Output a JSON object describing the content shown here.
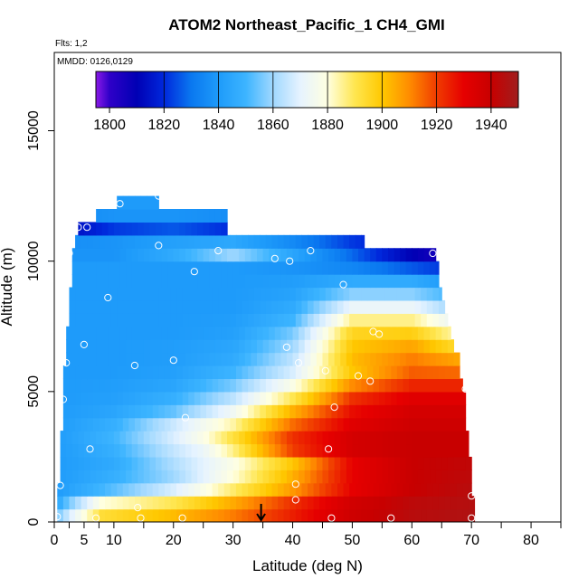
{
  "chart_data": {
    "type": "heatmap",
    "title": "ATOM2 Northeast_Pacific_1 CH4_GMI",
    "flights_label": "Flts: 1,2",
    "dates_label": "MMDD: 0126,0129",
    "xlabel": "Latitude (deg N)",
    "ylabel": "Altitude (m)",
    "xlim": [
      0,
      85
    ],
    "ylim": [
      0,
      18000
    ],
    "x_ticks": [
      0,
      5,
      10,
      20,
      30,
      40,
      50,
      60,
      70,
      80
    ],
    "x_tick_labels": [
      "0",
      "5",
      "10",
      "20",
      "30",
      "40",
      "50",
      "60",
      "70",
      "80"
    ],
    "x_minor_ticks": [
      2.5,
      7.5,
      15,
      25,
      35,
      45,
      55,
      65,
      75,
      85
    ],
    "y_ticks": [
      0,
      5000,
      10000,
      15000
    ],
    "y_tick_labels": [
      "0",
      "5000",
      "10000",
      "15000"
    ],
    "colorbar": {
      "min": 1795,
      "max": 1950,
      "ticks": [
        1800,
        1820,
        1840,
        1860,
        1880,
        1900,
        1920,
        1940
      ],
      "tick_labels": [
        "1800",
        "1820",
        "1840",
        "1860",
        "1880",
        "1900",
        "1920",
        "1940"
      ],
      "divisions": [
        1820,
        1840,
        1860,
        1880,
        1900,
        1920,
        1940
      ],
      "stops": [
        {
          "v": 1795,
          "c": "#8B1AE8"
        },
        {
          "v": 1800,
          "c": "#2F00C8"
        },
        {
          "v": 1810,
          "c": "#0000B4"
        },
        {
          "v": 1820,
          "c": "#0028DC"
        },
        {
          "v": 1830,
          "c": "#0A78F0"
        },
        {
          "v": 1840,
          "c": "#1E9BFA"
        },
        {
          "v": 1850,
          "c": "#3CB4FF"
        },
        {
          "v": 1860,
          "c": "#A0D8FF"
        },
        {
          "v": 1870,
          "c": "#E6F3FF"
        },
        {
          "v": 1880,
          "c": "#FFFFE0"
        },
        {
          "v": 1890,
          "c": "#FFE650"
        },
        {
          "v": 1900,
          "c": "#FFC800"
        },
        {
          "v": 1910,
          "c": "#FF8C00"
        },
        {
          "v": 1920,
          "c": "#F03C00"
        },
        {
          "v": 1930,
          "c": "#E60000"
        },
        {
          "v": 1940,
          "c": "#C80000"
        },
        {
          "v": 1950,
          "c": "#A01E1E"
        }
      ]
    },
    "layers": [
      {
        "alt": 250,
        "lat_min": 0.5,
        "lat_max": 70.5,
        "lat_knots": [
          0,
          3,
          8,
          20,
          30,
          40,
          50,
          60,
          70
        ],
        "values": [
          1852,
          1870,
          1893,
          1902,
          1912,
          1925,
          1938,
          1944,
          1946
        ]
      },
      {
        "alt": 750,
        "lat_min": 0.5,
        "lat_max": 70.5,
        "lat_knots": [
          0,
          3,
          8,
          20,
          30,
          40,
          50,
          60,
          70
        ],
        "values": [
          1842,
          1858,
          1880,
          1890,
          1905,
          1922,
          1937,
          1943,
          1945
        ]
      },
      {
        "alt": 1250,
        "lat_min": 0.5,
        "lat_max": 70,
        "lat_knots": [
          0,
          10,
          20,
          30,
          40,
          50,
          60,
          70
        ],
        "values": [
          1840,
          1853,
          1868,
          1888,
          1908,
          1930,
          1940,
          1944
        ]
      },
      {
        "alt": 1750,
        "lat_min": 1,
        "lat_max": 70,
        "lat_knots": [
          0,
          10,
          20,
          30,
          40,
          50,
          60,
          70
        ],
        "values": [
          1840,
          1848,
          1860,
          1880,
          1904,
          1930,
          1940,
          1943
        ]
      },
      {
        "alt": 2250,
        "lat_min": 1,
        "lat_max": 70,
        "lat_knots": [
          0,
          10,
          20,
          30,
          40,
          50,
          60,
          70
        ],
        "values": [
          1840,
          1846,
          1862,
          1878,
          1900,
          1930,
          1940,
          1942
        ]
      },
      {
        "alt": 2750,
        "lat_min": 1,
        "lat_max": 69.5,
        "lat_knots": [
          0,
          10,
          20,
          25,
          30,
          40,
          50,
          60,
          70
        ],
        "values": [
          1840,
          1848,
          1865,
          1872,
          1886,
          1920,
          1936,
          1940,
          1940
        ]
      },
      {
        "alt": 3250,
        "lat_min": 1,
        "lat_max": 69.5,
        "lat_knots": [
          0,
          10,
          20,
          25,
          30,
          40,
          50,
          60,
          70
        ],
        "values": [
          1840,
          1850,
          1868,
          1878,
          1892,
          1922,
          1936,
          1940,
          1940
        ]
      },
      {
        "alt": 3750,
        "lat_min": 1.5,
        "lat_max": 69,
        "lat_knots": [
          0,
          10,
          20,
          30,
          40,
          50,
          60,
          70
        ],
        "values": [
          1840,
          1848,
          1866,
          1884,
          1914,
          1932,
          1938,
          1938
        ]
      },
      {
        "alt": 4250,
        "lat_min": 1.5,
        "lat_max": 69,
        "lat_knots": [
          0,
          10,
          20,
          30,
          40,
          50,
          60,
          70
        ],
        "values": [
          1840,
          1844,
          1854,
          1874,
          1904,
          1928,
          1936,
          1936
        ]
      },
      {
        "alt": 4750,
        "lat_min": 1.5,
        "lat_max": 69,
        "lat_knots": [
          0,
          10,
          20,
          30,
          40,
          50,
          60,
          70
        ],
        "values": [
          1840,
          1842,
          1848,
          1864,
          1890,
          1922,
          1932,
          1932
        ]
      },
      {
        "alt": 5250,
        "lat_min": 1.5,
        "lat_max": 68.5,
        "lat_knots": [
          0,
          10,
          20,
          30,
          40,
          50,
          60,
          70
        ],
        "values": [
          1840,
          1841,
          1844,
          1856,
          1878,
          1910,
          1924,
          1924
        ]
      },
      {
        "alt": 5750,
        "lat_min": 1.5,
        "lat_max": 68,
        "lat_knots": [
          0,
          10,
          20,
          30,
          40,
          50,
          60,
          70
        ],
        "values": [
          1840,
          1840,
          1842,
          1850,
          1868,
          1900,
          1916,
          1914
        ]
      },
      {
        "alt": 6250,
        "lat_min": 2,
        "lat_max": 68,
        "lat_knots": [
          0,
          10,
          20,
          30,
          40,
          50,
          60,
          70
        ],
        "values": [
          1840,
          1840,
          1841,
          1846,
          1864,
          1902,
          1912,
          1904
        ]
      },
      {
        "alt": 6750,
        "lat_min": 2,
        "lat_max": 67,
        "lat_knots": [
          0,
          10,
          20,
          30,
          40,
          50,
          60,
          70
        ],
        "values": [
          1840,
          1840,
          1841,
          1844,
          1860,
          1900,
          1906,
          1890
        ]
      },
      {
        "alt": 7250,
        "lat_min": 2,
        "lat_max": 66.5,
        "lat_knots": [
          0,
          10,
          20,
          30,
          40,
          50,
          60,
          70
        ],
        "values": [
          1840,
          1840,
          1840,
          1842,
          1856,
          1896,
          1898,
          1878
        ]
      },
      {
        "alt": 7750,
        "lat_min": 2.5,
        "lat_max": 66,
        "lat_knots": [
          0,
          10,
          20,
          30,
          40,
          50,
          60,
          70
        ],
        "values": [
          1840,
          1840,
          1840,
          1841,
          1850,
          1886,
          1886,
          1866
        ]
      },
      {
        "alt": 8250,
        "lat_min": 2.5,
        "lat_max": 65.5,
        "lat_knots": [
          0,
          10,
          20,
          30,
          40,
          50,
          60,
          70
        ],
        "values": [
          1840,
          1840,
          1840,
          1840,
          1846,
          1872,
          1872,
          1854
        ]
      },
      {
        "alt": 8750,
        "lat_min": 2.5,
        "lat_max": 65,
        "lat_knots": [
          0,
          10,
          20,
          30,
          40,
          50,
          60,
          70
        ],
        "values": [
          1840,
          1840,
          1840,
          1840,
          1843,
          1858,
          1858,
          1846
        ]
      },
      {
        "alt": 9250,
        "lat_min": 3,
        "lat_max": 64.5,
        "lat_knots": [
          0,
          10,
          20,
          30,
          40,
          50,
          60,
          70
        ],
        "values": [
          1840,
          1840,
          1840,
          1840,
          1841,
          1846,
          1846,
          1836
        ]
      },
      {
        "alt": 9750,
        "lat_min": 3,
        "lat_max": 64.5,
        "lat_knots": [
          0,
          10,
          20,
          30,
          40,
          50,
          60,
          70
        ],
        "values": [
          1840,
          1840,
          1840,
          1840,
          1838,
          1834,
          1826,
          1818
        ]
      },
      {
        "alt": 10250,
        "lat_min": 3,
        "lat_max": 64,
        "lat_knots": [
          0,
          10,
          20,
          30,
          40,
          50,
          60,
          70
        ],
        "values": [
          1838,
          1838,
          1846,
          1860,
          1844,
          1828,
          1810,
          1800
        ]
      },
      {
        "alt": 10750,
        "lat_min": 3.5,
        "lat_max": 52,
        "lat_knots": [
          0,
          10,
          20,
          30,
          40,
          50,
          60,
          70
        ],
        "values": [
          1836,
          1838,
          1842,
          1845,
          1835,
          1822,
          1815,
          1810
        ]
      },
      {
        "alt": 11250,
        "lat_min": 4,
        "lat_max": 29,
        "lat_knots": [
          0,
          10,
          20,
          30,
          40,
          50,
          60,
          70
        ],
        "values": [
          1810,
          1822,
          1826,
          1820,
          1815,
          1812,
          1810,
          1810
        ]
      },
      {
        "alt": 11750,
        "lat_min": 7,
        "lat_max": 29,
        "lat_knots": [
          0,
          10,
          20,
          30,
          40,
          50,
          60,
          70
        ],
        "values": [
          1834,
          1838,
          1838,
          1836,
          1830,
          1825,
          1820,
          1820
        ]
      },
      {
        "alt": 12250,
        "lat_min": 10.5,
        "lat_max": 17.5,
        "lat_knots": [
          0,
          10,
          20,
          30,
          40,
          50,
          60,
          70
        ],
        "values": [
          1840,
          1840,
          1840,
          1840,
          1840,
          1840,
          1840,
          1840
        ]
      }
    ],
    "observations": [
      {
        "lat": 0.5,
        "alt": 200
      },
      {
        "lat": 1,
        "alt": 1400
      },
      {
        "lat": 1.5,
        "alt": 4700
      },
      {
        "lat": 2,
        "alt": 6100
      },
      {
        "lat": 2.5,
        "alt": 10300
      },
      {
        "lat": 4,
        "alt": 11300
      },
      {
        "lat": 5.5,
        "alt": 11300
      },
      {
        "lat": 6,
        "alt": 2800
      },
      {
        "lat": 5,
        "alt": 6800
      },
      {
        "lat": 7,
        "alt": 150
      },
      {
        "lat": 9,
        "alt": 8600
      },
      {
        "lat": 11,
        "alt": 12200
      },
      {
        "lat": 13.5,
        "alt": 6000
      },
      {
        "lat": 14,
        "alt": 550
      },
      {
        "lat": 14.5,
        "alt": 150
      },
      {
        "lat": 17.5,
        "alt": 10600
      },
      {
        "lat": 17.5,
        "alt": 12500
      },
      {
        "lat": 20,
        "alt": 6200
      },
      {
        "lat": 21.5,
        "alt": 150
      },
      {
        "lat": 22,
        "alt": 4000
      },
      {
        "lat": 23.5,
        "alt": 9600
      },
      {
        "lat": 27.5,
        "alt": 10400
      },
      {
        "lat": 37,
        "alt": 10100
      },
      {
        "lat": 39,
        "alt": 6700
      },
      {
        "lat": 39.5,
        "alt": 10000
      },
      {
        "lat": 40.5,
        "alt": 1450
      },
      {
        "lat": 40.5,
        "alt": 850
      },
      {
        "lat": 41,
        "alt": 6100
      },
      {
        "lat": 43,
        "alt": 10400
      },
      {
        "lat": 45.5,
        "alt": 5800
      },
      {
        "lat": 46,
        "alt": 2800
      },
      {
        "lat": 46.5,
        "alt": 150
      },
      {
        "lat": 47,
        "alt": 4400
      },
      {
        "lat": 48.5,
        "alt": 9100
      },
      {
        "lat": 51,
        "alt": 5600
      },
      {
        "lat": 53,
        "alt": 5400
      },
      {
        "lat": 53.5,
        "alt": 7300
      },
      {
        "lat": 54.5,
        "alt": 7200
      },
      {
        "lat": 56.5,
        "alt": 150
      },
      {
        "lat": 63.5,
        "alt": 10300
      },
      {
        "lat": 69,
        "alt": 5100
      },
      {
        "lat": 70,
        "alt": 1000
      },
      {
        "lat": 70,
        "alt": 150
      }
    ],
    "marker": {
      "lat": 34.7,
      "alt": 0,
      "label": "arrow"
    }
  }
}
